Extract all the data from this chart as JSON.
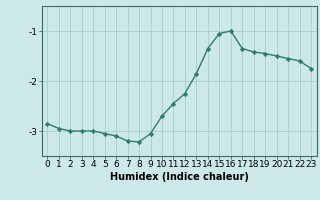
{
  "x": [
    0,
    1,
    2,
    3,
    4,
    5,
    6,
    7,
    8,
    9,
    10,
    11,
    12,
    13,
    14,
    15,
    16,
    17,
    18,
    19,
    20,
    21,
    22,
    23
  ],
  "y": [
    -2.85,
    -2.95,
    -3.0,
    -3.0,
    -3.0,
    -3.05,
    -3.1,
    -3.2,
    -3.22,
    -3.05,
    -2.7,
    -2.45,
    -2.25,
    -1.85,
    -1.35,
    -1.05,
    -1.0,
    -1.35,
    -1.42,
    -1.45,
    -1.5,
    -1.55,
    -1.6,
    -1.75
  ],
  "line_color": "#2e7d6e",
  "marker": "D",
  "marker_size": 2.2,
  "bg_color": "#cce8e8",
  "grid_color": "#aacccc",
  "xlabel": "Humidex (Indice chaleur)",
  "ylim": [
    -3.5,
    -0.5
  ],
  "xlim": [
    -0.5,
    23.5
  ],
  "yticks": [
    -3,
    -2,
    -1
  ],
  "xticks": [
    0,
    1,
    2,
    3,
    4,
    5,
    6,
    7,
    8,
    9,
    10,
    11,
    12,
    13,
    14,
    15,
    16,
    17,
    18,
    19,
    20,
    21,
    22,
    23
  ],
  "xlabel_fontsize": 7,
  "tick_fontsize": 6.5,
  "line_width": 1.0
}
